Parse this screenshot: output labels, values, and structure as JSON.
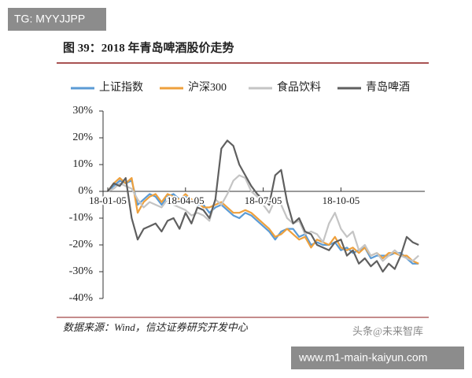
{
  "chart_data": {
    "type": "line",
    "title": "图 39：2018 年青岛啤酒股价走势",
    "source": "数据来源：Wind，信达证券研究开发中心",
    "categories": [
      "18-01-05",
      null,
      null,
      null,
      null,
      null,
      null,
      null,
      null,
      null,
      null,
      null,
      null,
      "18-04-05",
      null,
      null,
      null,
      null,
      null,
      null,
      null,
      null,
      null,
      null,
      null,
      null,
      "18-07-05",
      null,
      null,
      null,
      null,
      null,
      null,
      null,
      null,
      null,
      null,
      null,
      null,
      "18-10-05",
      null,
      null,
      null,
      null,
      null,
      null,
      null,
      null,
      null,
      null,
      null,
      null,
      null
    ],
    "series": [
      {
        "name": "上证指数",
        "color": "#5b9bd5",
        "values": [
          0,
          2,
          4,
          3,
          4,
          -5,
          -3,
          -1,
          -2,
          -5,
          -2,
          -1,
          -3,
          -2,
          -4,
          -5,
          -5,
          -8,
          -6,
          -5,
          -7,
          -9,
          -10,
          -8,
          -9,
          -11,
          -13,
          -15,
          -18,
          -15,
          -14,
          -14,
          -17,
          -16,
          -20,
          -19,
          -20,
          -20,
          -19,
          -22,
          -21,
          -23,
          -22,
          -21,
          -25,
          -24,
          -24,
          -24,
          -23,
          -23,
          -25,
          -27,
          -27
        ]
      },
      {
        "name": "沪深300",
        "color": "#eea03c",
        "values": [
          0,
          3,
          5,
          3,
          5,
          -8,
          -4,
          -2,
          -1,
          -4,
          -1,
          -2,
          -3,
          -1,
          -3,
          -4,
          -6,
          -6,
          -5,
          -4,
          -6,
          -8,
          -8,
          -7,
          -8,
          -10,
          -12,
          -14,
          -17,
          -16,
          -14,
          -16,
          -18,
          -17,
          -21,
          -18,
          -19,
          -20,
          -17,
          -21,
          -22,
          -21,
          -23,
          -21,
          -24,
          -23,
          -25,
          -23,
          -23,
          -24,
          -24,
          -26,
          -27
        ]
      },
      {
        "name": "食品饮料",
        "color": "#c4c4c4",
        "values": [
          0,
          1,
          3,
          2,
          1,
          -3,
          -6,
          -4,
          -5,
          -6,
          -3,
          -5,
          -6,
          -7,
          -9,
          -8,
          -9,
          -11,
          -3,
          -5,
          -1,
          4,
          6,
          5,
          0,
          -2,
          -5,
          -8,
          -3,
          -5,
          -10,
          -12,
          -11,
          -16,
          -15,
          -16,
          -19,
          -12,
          -8,
          -14,
          -17,
          -15,
          -22,
          -20,
          -24,
          -23,
          -26,
          -24,
          -22,
          -24,
          -25,
          -26,
          -24
        ]
      },
      {
        "name": "青岛啤酒",
        "color": "#5f5f5f",
        "values": [
          0,
          3,
          2,
          5,
          -10,
          -18,
          -14,
          -13,
          -12,
          -15,
          -11,
          -10,
          -14,
          -8,
          -12,
          -6,
          -7,
          -10,
          -3,
          16,
          19,
          17,
          10,
          6,
          2,
          -1,
          -3,
          -5,
          6,
          8,
          -4,
          -12,
          -10,
          -15,
          -16,
          -20,
          -21,
          -22,
          -19,
          -18,
          -24,
          -22,
          -27,
          -25,
          -28,
          -26,
          -30,
          -27,
          -29,
          -24,
          -17,
          -19,
          -20
        ]
      }
    ],
    "ylim": [
      -40,
      30
    ],
    "yticks": [
      {
        "value": 30,
        "label": "30%"
      },
      {
        "value": 20,
        "label": "20%"
      },
      {
        "value": 10,
        "label": "10%"
      },
      {
        "value": 0,
        "label": "0%"
      },
      {
        "value": -10,
        "label": "-10%"
      },
      {
        "value": -20,
        "label": "-20%"
      },
      {
        "value": -30,
        "label": "-30%"
      },
      {
        "value": -40,
        "label": "-40%"
      }
    ],
    "grid": false
  },
  "watermark": "头条@未来智库",
  "overlay_top": "TG: MYYJJPP",
  "overlay_bottom": "www.m1-main-kaiyun.com"
}
